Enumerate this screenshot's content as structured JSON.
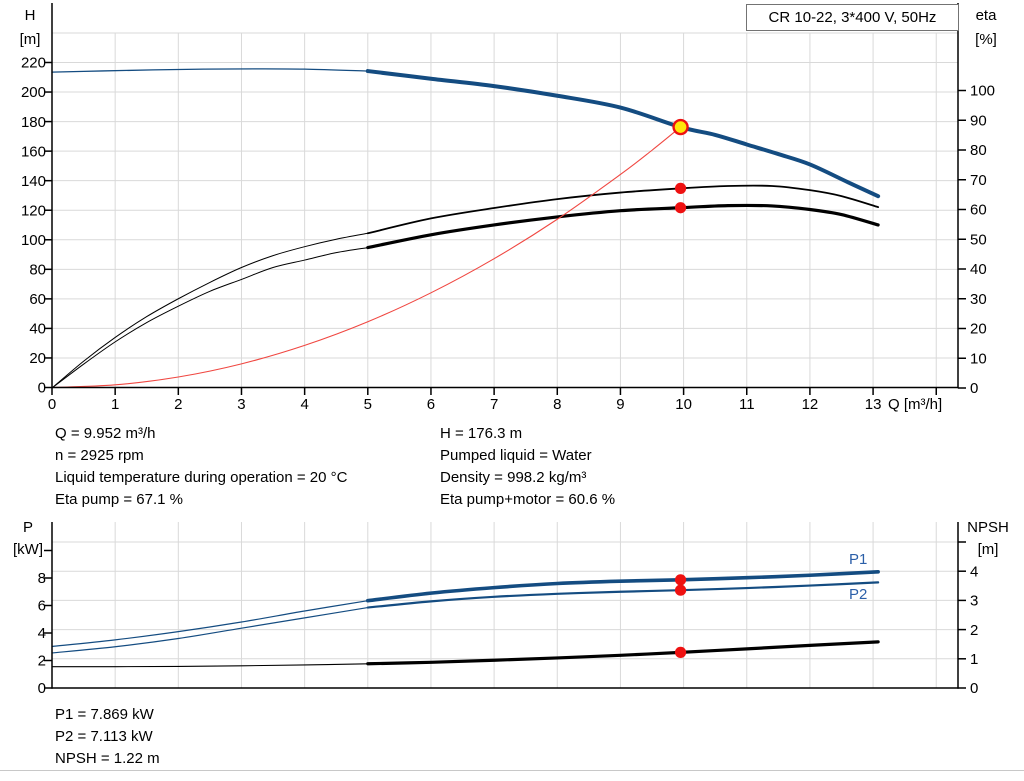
{
  "header": {
    "title": "CR 10-22, 3*400 V, 50Hz"
  },
  "colors": {
    "curve_blue": "#144c81",
    "curve_black": "#000000",
    "curve_red": "#f04741",
    "dot_red": "#ee1111",
    "duty_yellow": "#ffe60a",
    "label_blue": "#2b5fa8",
    "grid_gray": "#d9d9d9",
    "axis_black": "#000000"
  },
  "top_chart": {
    "y_left_title": {
      "line1": "H",
      "line2": "[m]"
    },
    "y_right_title": {
      "line1": "eta",
      "line2": "[%]"
    },
    "x_title": "Q [m³/h]"
  },
  "bottom_chart": {
    "y_left_title": {
      "line1": "P",
      "line2": "[kW]"
    },
    "y_right_title": {
      "line1": "NPSH",
      "line2": "[m]"
    },
    "p1_label": "P1",
    "p2_label": "P2"
  },
  "operating_point_info": {
    "left": [
      "Q = 9.952 m³/h",
      "n = 2925 rpm",
      "Liquid temperature during operation = 20 °C",
      "Eta pump = 67.1 %"
    ],
    "right": [
      "H = 176.3 m",
      "Pumped liquid = Water",
      "Density = 998.2 kg/m³",
      "Eta pump+motor = 60.6 %"
    ]
  },
  "power_info": [
    "P1 = 7.869 kW",
    "P2 = 7.113 kW",
    "NPSH = 1.22 m"
  ],
  "chart_data": [
    {
      "type": "line",
      "title": "CR 10-22, 3*400 V, 50Hz",
      "xlabel": "Q [m³/h]",
      "ylabel_left": "H [m]",
      "ylabel_right": "eta [%]",
      "x_ticks": [
        0,
        1,
        2,
        3,
        4,
        5,
        6,
        7,
        8,
        9,
        10,
        11,
        12,
        13,
        14
      ],
      "x_tick_labels": [
        "0",
        "1",
        "2",
        "3",
        "4",
        "5",
        "6",
        "7",
        "8",
        "9",
        "10",
        "11",
        "12",
        "13",
        ""
      ],
      "x_axis_max": 14.35,
      "y_left_ticks": [
        0,
        20,
        40,
        60,
        80,
        100,
        120,
        140,
        160,
        180,
        200,
        220
      ],
      "y_left_tick_labels": [
        "0",
        "20",
        "40",
        "60",
        "80",
        "100",
        "120",
        "140",
        "160",
        "180",
        "200",
        "220"
      ],
      "y_left_max": 240,
      "y_right_ticks": [
        0,
        10,
        20,
        30,
        40,
        50,
        60,
        70,
        80,
        90,
        100
      ],
      "y_right_tick_labels": [
        "0",
        "10",
        "20",
        "30",
        "40",
        "50",
        "60",
        "70",
        "80",
        "90",
        "100"
      ],
      "grid": true,
      "v_grid": [
        1,
        2,
        3,
        4,
        5,
        6,
        7,
        8,
        9,
        10,
        11,
        12,
        13,
        14
      ],
      "h_grid": {
        "axis": "left",
        "vals": [
          20,
          40,
          60,
          80,
          100,
          120,
          140,
          160,
          180,
          200,
          220,
          240
        ]
      },
      "legend": "none",
      "series": [
        {
          "name": "H pump curve",
          "axis": "left",
          "color_key": "curve_blue",
          "thin_width": 1.3,
          "thick_width": 4,
          "thick_from_x": 5,
          "points": [
            [
              0,
              213.5
            ],
            [
              0.8,
              214.3
            ],
            [
              1.6,
              215.0
            ],
            [
              2.4,
              215.5
            ],
            [
              3.2,
              215.7
            ],
            [
              4,
              215.5
            ],
            [
              5,
              214.2
            ],
            [
              6,
              209
            ],
            [
              7,
              204
            ],
            [
              8,
              197.5
            ],
            [
              9,
              189.5
            ],
            [
              9.952,
              176.3
            ],
            [
              10.5,
              171
            ],
            [
              11,
              164.5
            ],
            [
              11.5,
              158
            ],
            [
              12,
              151
            ],
            [
              12.6,
              139
            ],
            [
              13.08,
              129.5
            ]
          ]
        },
        {
          "name": "eta pump",
          "axis": "right",
          "color_key": "curve_black",
          "thin_width": 1,
          "thick_width": 1.8,
          "thick_from_x": 5,
          "points": [
            [
              0,
              0
            ],
            [
              0.5,
              9
            ],
            [
              1,
              17
            ],
            [
              1.5,
              24
            ],
            [
              2,
              30
            ],
            [
              2.5,
              35.5
            ],
            [
              3,
              40.5
            ],
            [
              3.5,
              44.5
            ],
            [
              4,
              47.5
            ],
            [
              4.5,
              50
            ],
            [
              5,
              52
            ],
            [
              6,
              57
            ],
            [
              7,
              60.5
            ],
            [
              8,
              63.5
            ],
            [
              9,
              65.7
            ],
            [
              9.952,
              67.1
            ],
            [
              10.7,
              67.9
            ],
            [
              11.4,
              67.9
            ],
            [
              12,
              66.5
            ],
            [
              12.5,
              64.5
            ],
            [
              13.08,
              60.8
            ]
          ]
        },
        {
          "name": "eta pump+motor",
          "axis": "right",
          "color_key": "curve_black",
          "thin_width": 1,
          "thick_width": 3.2,
          "thick_from_x": 5,
          "points": [
            [
              0,
              0
            ],
            [
              0.5,
              8
            ],
            [
              1,
              15.5
            ],
            [
              1.5,
              22
            ],
            [
              2,
              27.5
            ],
            [
              2.5,
              32.5
            ],
            [
              3,
              36.5
            ],
            [
              3.5,
              40.5
            ],
            [
              4,
              43
            ],
            [
              4.5,
              45.5
            ],
            [
              5,
              47.2
            ],
            [
              6,
              51.5
            ],
            [
              7,
              54.8
            ],
            [
              8,
              57.5
            ],
            [
              9,
              59.6
            ],
            [
              9.952,
              60.6
            ],
            [
              10.7,
              61.3
            ],
            [
              11.4,
              61.2
            ],
            [
              12,
              60
            ],
            [
              12.5,
              58.3
            ],
            [
              13.08,
              54.8
            ]
          ]
        },
        {
          "name": "affinity curve to duty point",
          "axis": "left",
          "color_key": "curve_red",
          "thin_width": 1.1,
          "thick_width": 1.1,
          "thick_from_x": 99,
          "points": [
            [
              0,
              0
            ],
            [
              1,
              1.8
            ],
            [
              2,
              7.1
            ],
            [
              3,
              16
            ],
            [
              4,
              28.5
            ],
            [
              5,
              44.5
            ],
            [
              6,
              64.1
            ],
            [
              7,
              87.2
            ],
            [
              8,
              113.9
            ],
            [
              9,
              144.2
            ],
            [
              9.5,
              160.6
            ],
            [
              9.952,
              176.3
            ]
          ]
        }
      ],
      "markers": [
        {
          "kind": "duty_point",
          "axis": "left",
          "x": 9.952,
          "y": 176.3
        },
        {
          "kind": "dot",
          "axis": "right",
          "x": 9.952,
          "y": 67.1
        },
        {
          "kind": "dot",
          "axis": "right",
          "x": 9.952,
          "y": 60.6
        }
      ]
    },
    {
      "type": "line",
      "title": "",
      "xlabel": "",
      "ylabel_left": "P [kW]",
      "ylabel_right": "NPSH [m]",
      "x_ticks": [],
      "x_tick_labels": [],
      "x_axis_max": 14.35,
      "y_left_ticks": [
        0,
        2,
        4,
        6,
        8,
        10
      ],
      "y_left_tick_labels": [
        "0",
        "2",
        "4",
        "6",
        "8",
        ""
      ],
      "y_right_ticks": [
        0,
        1,
        2,
        3,
        4,
        5
      ],
      "y_right_tick_labels": [
        "0",
        "1",
        "2",
        "3",
        "4",
        ""
      ],
      "grid": true,
      "v_grid": [
        1,
        2,
        3,
        4,
        5,
        6,
        7,
        8,
        9,
        10,
        11,
        12,
        13,
        14
      ],
      "h_grid": {
        "axis": "right",
        "vals": [
          1,
          2,
          3,
          4,
          5
        ]
      },
      "legend": "inline-right",
      "series": [
        {
          "name": "P1",
          "axis": "left",
          "color_key": "curve_blue",
          "thin_width": 1.2,
          "thick_width": 3.6,
          "thick_from_x": 5,
          "points": [
            [
              0,
              3.02
            ],
            [
              1,
              3.5
            ],
            [
              2,
              4.1
            ],
            [
              3,
              4.8
            ],
            [
              4,
              5.6
            ],
            [
              5,
              6.35
            ],
            [
              6,
              6.9
            ],
            [
              7,
              7.3
            ],
            [
              8,
              7.6
            ],
            [
              9,
              7.77
            ],
            [
              9.952,
              7.869
            ],
            [
              11,
              8.02
            ],
            [
              12,
              8.2
            ],
            [
              13.08,
              8.45
            ]
          ]
        },
        {
          "name": "P2",
          "axis": "left",
          "color_key": "curve_blue",
          "thin_width": 1.2,
          "thick_width": 2.2,
          "thick_from_x": 5,
          "points": [
            [
              0,
              2.55
            ],
            [
              1,
              3.0
            ],
            [
              2,
              3.6
            ],
            [
              3,
              4.35
            ],
            [
              4,
              5.1
            ],
            [
              5,
              5.85
            ],
            [
              6,
              6.3
            ],
            [
              7,
              6.63
            ],
            [
              8,
              6.85
            ],
            [
              9,
              7.0
            ],
            [
              9.952,
              7.113
            ],
            [
              11,
              7.27
            ],
            [
              12,
              7.45
            ],
            [
              13.08,
              7.68
            ]
          ]
        },
        {
          "name": "NPSH",
          "axis": "right",
          "color_key": "curve_black",
          "thin_width": 1.1,
          "thick_width": 3.2,
          "thick_from_x": 5,
          "points": [
            [
              0,
              0.73
            ],
            [
              1,
              0.73
            ],
            [
              2,
              0.74
            ],
            [
              3,
              0.76
            ],
            [
              4,
              0.79
            ],
            [
              5,
              0.83
            ],
            [
              6,
              0.88
            ],
            [
              7,
              0.95
            ],
            [
              8,
              1.03
            ],
            [
              9,
              1.12
            ],
            [
              9.952,
              1.22
            ],
            [
              11,
              1.34
            ],
            [
              12,
              1.46
            ],
            [
              13.08,
              1.58
            ]
          ]
        }
      ],
      "markers": [
        {
          "kind": "dot",
          "axis": "left",
          "x": 9.952,
          "y": 7.869
        },
        {
          "kind": "dot",
          "axis": "left",
          "x": 9.952,
          "y": 7.113
        },
        {
          "kind": "dot",
          "axis": "right",
          "x": 9.952,
          "y": 1.22
        }
      ]
    }
  ]
}
